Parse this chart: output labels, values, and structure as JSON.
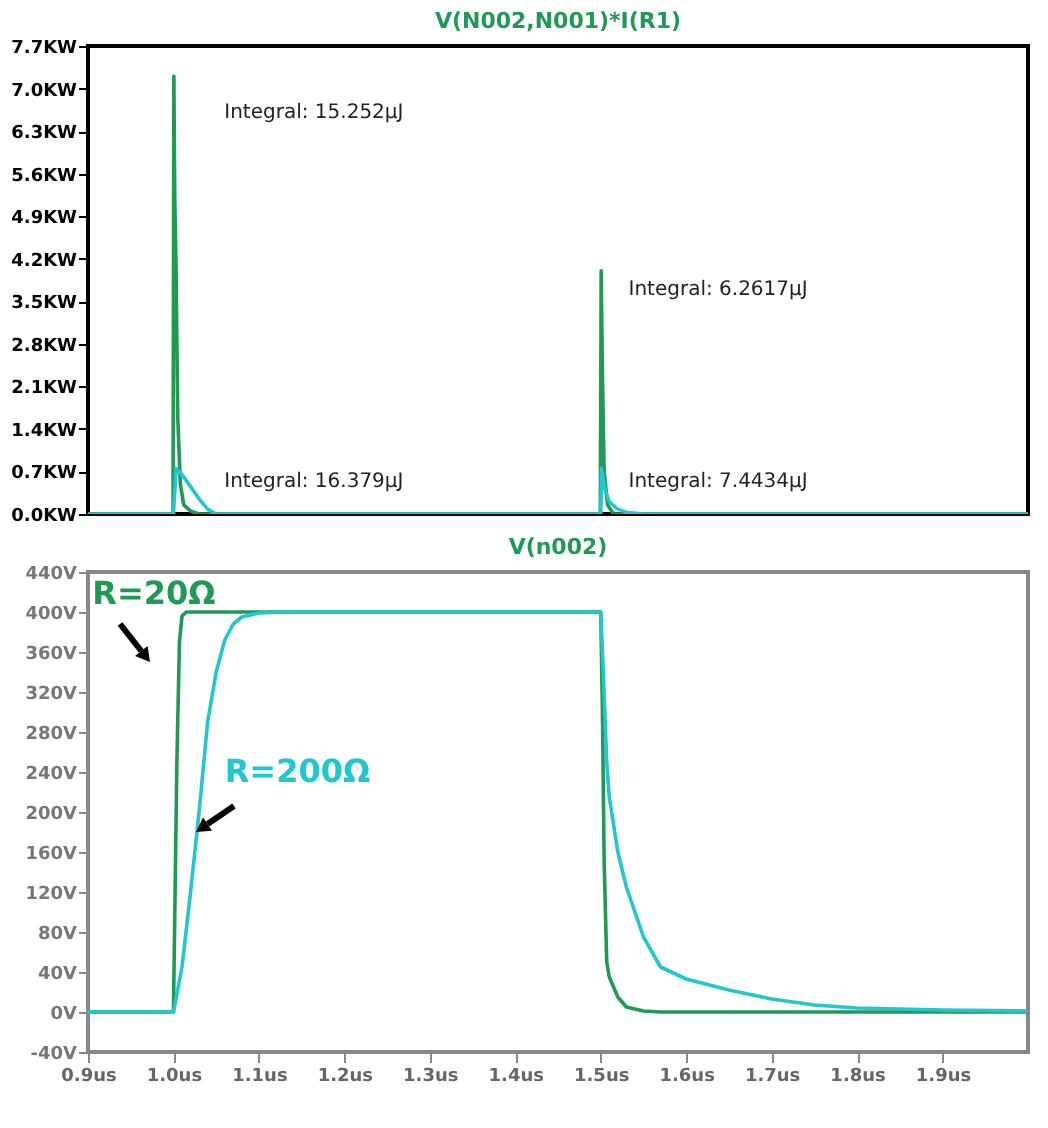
{
  "chart_data": [
    {
      "type": "line",
      "title": "V(N002,N001)*I(R1)",
      "xlim": [
        0.9,
        2.0
      ],
      "ylim": [
        0,
        7.7
      ],
      "yticks": [
        {
          "value": 0,
          "label": "0.0KW"
        },
        {
          "value": 0.7,
          "label": "0.7KW"
        },
        {
          "value": 1.4,
          "label": "1.4KW"
        },
        {
          "value": 2.1,
          "label": "2.1KW"
        },
        {
          "value": 2.8,
          "label": "2.8KW"
        },
        {
          "value": 3.5,
          "label": "3.5KW"
        },
        {
          "value": 4.2,
          "label": "4.2KW"
        },
        {
          "value": 4.9,
          "label": "4.9KW"
        },
        {
          "value": 5.6,
          "label": "5.6KW"
        },
        {
          "value": 6.3,
          "label": "6.3KW"
        },
        {
          "value": 7.0,
          "label": "7.0KW"
        },
        {
          "value": 7.7,
          "label": "7.7KW"
        }
      ],
      "tick_labels": "y",
      "series": [
        {
          "color": "#1f9a55",
          "x": [
            0.9,
            0.9995,
            1.0005,
            1.0015,
            1.003,
            1.005,
            1.008,
            1.012,
            1.02,
            1.03,
            1.4995,
            1.5005,
            1.502,
            1.504,
            1.508,
            1.515,
            2.0
          ],
          "values": [
            0,
            0,
            7.2,
            5.2,
            4.1,
            1.6,
            0.5,
            0.15,
            0.05,
            0,
            0,
            4.0,
            2.3,
            0.7,
            0.15,
            0,
            0
          ]
        },
        {
          "color": "#22c6cf",
          "x": [
            0.9,
            1.0,
            1.003,
            1.01,
            1.02,
            1.03,
            1.04,
            1.05,
            1.5,
            1.501,
            1.505,
            1.51,
            1.52,
            1.53,
            1.55,
            2.0
          ],
          "values": [
            0,
            0,
            0.75,
            0.65,
            0.45,
            0.25,
            0.08,
            0,
            0,
            0.75,
            0.4,
            0.2,
            0.08,
            0.03,
            0,
            0
          ]
        }
      ],
      "annotations": [
        "Integral: 15.252µJ",
        "Integral: 16.379µJ",
        "Integral: 6.2617µJ",
        "Integral: 7.4434µJ"
      ]
    },
    {
      "type": "line",
      "title": "V(n002)",
      "xlim": [
        0.9,
        2.0
      ],
      "xticks": [
        {
          "value": 0.9,
          "label": "0.9us"
        },
        {
          "value": 1.0,
          "label": "1.0us"
        },
        {
          "value": 1.1,
          "label": "1.1us"
        },
        {
          "value": 1.2,
          "label": "1.2us"
        },
        {
          "value": 1.3,
          "label": "1.3us"
        },
        {
          "value": 1.4,
          "label": "1.4us"
        },
        {
          "value": 1.5,
          "label": "1.5us"
        },
        {
          "value": 1.6,
          "label": "1.6us"
        },
        {
          "value": 1.7,
          "label": "1.7us"
        },
        {
          "value": 1.8,
          "label": "1.8us"
        },
        {
          "value": 1.9,
          "label": "1.9us"
        }
      ],
      "ylim": [
        -40,
        440
      ],
      "yticks": [
        {
          "value": -40,
          "label": "-40V"
        },
        {
          "value": 0,
          "label": "0V"
        },
        {
          "value": 40,
          "label": "40V"
        },
        {
          "value": 80,
          "label": "80V"
        },
        {
          "value": 120,
          "label": "120V"
        },
        {
          "value": 160,
          "label": "160V"
        },
        {
          "value": 200,
          "label": "200V"
        },
        {
          "value": 240,
          "label": "240V"
        },
        {
          "value": 280,
          "label": "280V"
        },
        {
          "value": 320,
          "label": "320V"
        },
        {
          "value": 360,
          "label": "360V"
        },
        {
          "value": 400,
          "label": "400V"
        },
        {
          "value": 440,
          "label": "440V"
        }
      ],
      "series": [
        {
          "name": "R=20Ω",
          "color": "#1f9a55",
          "x": [
            0.9,
            1.0,
            1.004,
            1.007,
            1.01,
            1.015,
            1.5,
            1.502,
            1.504,
            1.507,
            1.51,
            1.52,
            1.53,
            1.55,
            1.57,
            2.0
          ],
          "values": [
            0,
            0,
            250,
            370,
            396,
            400,
            400,
            300,
            150,
            50,
            35,
            15,
            5,
            1,
            0,
            0
          ]
        },
        {
          "name": "R=200Ω",
          "color": "#22c6cf",
          "x": [
            0.9,
            1.0,
            1.01,
            1.02,
            1.03,
            1.04,
            1.05,
            1.06,
            1.07,
            1.08,
            1.1,
            1.13,
            1.5,
            1.503,
            1.507,
            1.51,
            1.52,
            1.53,
            1.55,
            1.57,
            1.6,
            1.65,
            1.7,
            1.75,
            1.8,
            1.9,
            2.0
          ],
          "values": [
            0,
            0,
            45,
            120,
            200,
            290,
            340,
            372,
            388,
            395,
            399,
            400,
            400,
            340,
            250,
            215,
            160,
            125,
            75,
            45,
            33,
            22,
            13,
            7,
            4,
            2,
            1
          ]
        }
      ]
    }
  ]
}
